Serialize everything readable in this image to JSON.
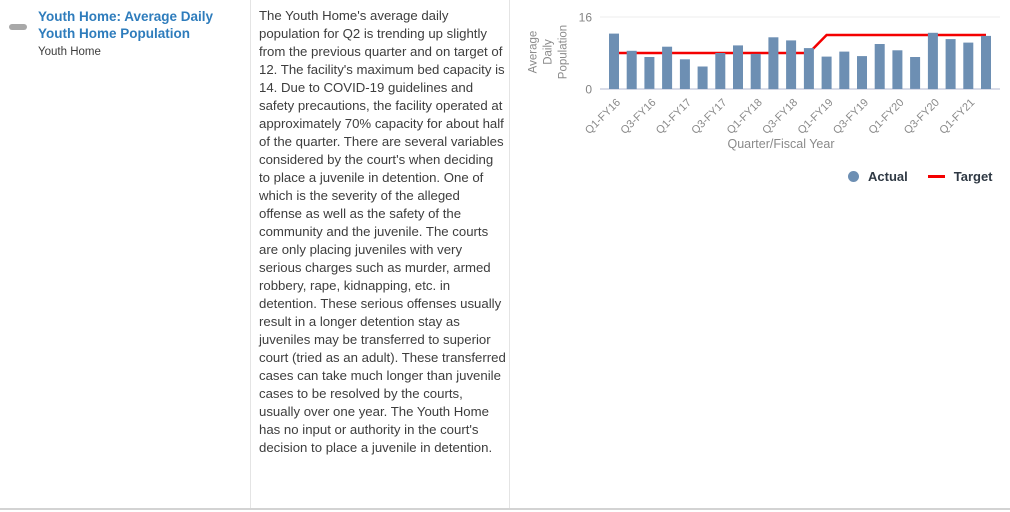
{
  "panel": {
    "title": "Youth Home: Average Daily Youth Home Population",
    "subtitle": "Youth Home",
    "description": "The Youth Home's average daily population for Q2 is trending up slightly from the previous quarter and on target of 12. The facility's maximum bed capacity is 14. Due to COVID-19 guidelines and safety precautions, the facility operated at approximately 70% capacity for about half of the quarter. There are several variables considered by the court's when deciding to place a juvenile in detention. One of which is the severity of the alleged offense as well as the safety of the community and the juvenile. The courts are only placing juveniles with very serious charges such as murder, armed robbery, rape, kidnapping, etc. in detention. These serious offenses usually result in a longer detention stay as juveniles may be transferred to superior court (tried as an adult). These transferred cases can take much longer than juvenile cases to be resolved by the courts, usually over one year. The Youth Home has no input or authority in the court's decision to place a juvenile in detention."
  },
  "colors": {
    "accent_blue": "#2e7cbc",
    "bar": "#6d8fb3",
    "target_red": "#f40000",
    "axis_text": "#8a8a8a",
    "tick_text": "#848484"
  },
  "chart_data": {
    "type": "bar",
    "title": "",
    "xlabel": "Quarter/Fiscal Year",
    "ylabel": "Average Daily Population",
    "ylim": [
      0,
      16
    ],
    "yticks": [
      "0",
      "16"
    ],
    "grid": false,
    "legend_position": "bottom-right",
    "categories": [
      "Q1-FY16",
      "Q2-FY16",
      "Q3-FY16",
      "Q4-FY16",
      "Q1-FY17",
      "Q2-FY17",
      "Q3-FY17",
      "Q4-FY17",
      "Q1-FY18",
      "Q2-FY18",
      "Q3-FY18",
      "Q4-FY18",
      "Q1-FY19",
      "Q2-FY19",
      "Q3-FY19",
      "Q4-FY19",
      "Q1-FY20",
      "Q2-FY20",
      "Q3-FY20",
      "Q4-FY20",
      "Q1-FY21",
      "Q2-FY21"
    ],
    "x_tick_labels": [
      "Q1-FY16",
      "Q3-FY16",
      "Q1-FY17",
      "Q3-FY17",
      "Q1-FY18",
      "Q3-FY18",
      "Q1-FY19",
      "Q3-FY19",
      "Q1-FY20",
      "Q3-FY20",
      "Q1-FY21"
    ],
    "series": [
      {
        "name": "Actual",
        "type": "bar",
        "values": [
          12.3,
          8.5,
          7.1,
          9.4,
          6.6,
          5.0,
          8.0,
          9.7,
          7.8,
          11.5,
          10.8,
          9.1,
          7.2,
          8.3,
          7.3,
          10.0,
          8.6,
          7.1,
          12.5,
          11.1,
          10.3,
          11.8
        ]
      },
      {
        "name": "Target",
        "type": "line",
        "values": [
          8,
          8,
          8,
          8,
          8,
          8,
          8,
          8,
          8,
          8,
          8,
          8,
          12,
          12,
          12,
          12,
          12,
          12,
          12,
          12,
          12,
          12
        ]
      }
    ],
    "legend": [
      {
        "label": "Actual",
        "marker": "circle",
        "color": "#6d8fb3"
      },
      {
        "label": "Target",
        "marker": "line",
        "color": "#f40000"
      }
    ]
  }
}
